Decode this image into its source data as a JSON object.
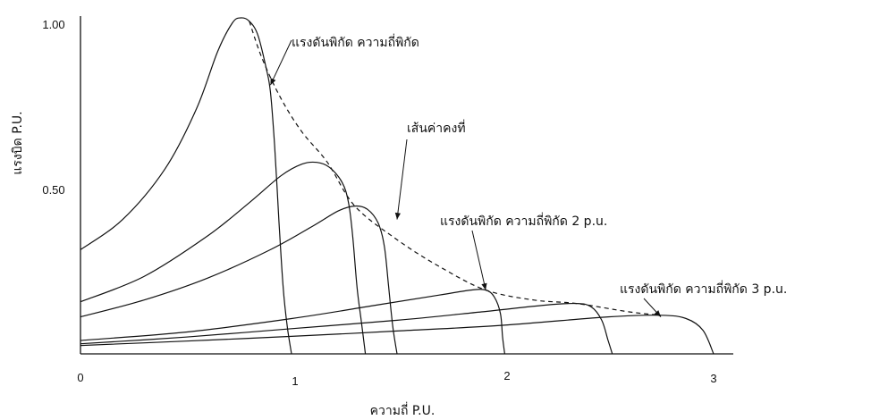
{
  "chart_data": {
    "type": "line",
    "title": "",
    "xlabel": "ความถี่ P.U.",
    "ylabel": "แรงบิด P.U.",
    "xlim": [
      0,
      3
    ],
    "ylim": [
      0,
      1.0
    ],
    "x_ticks": [
      "0",
      "1",
      "2",
      "3"
    ],
    "y_ticks": [
      "0.50",
      "1.00"
    ],
    "series": [
      {
        "points": [
          [
            0,
            0.31
          ],
          [
            0.2,
            0.4
          ],
          [
            0.4,
            0.55
          ],
          [
            0.55,
            0.73
          ],
          [
            0.65,
            0.9
          ],
          [
            0.72,
            0.985
          ],
          [
            0.76,
            1.0
          ],
          [
            0.8,
            0.99
          ],
          [
            0.84,
            0.95
          ],
          [
            0.88,
            0.85
          ],
          [
            0.9,
            0.78
          ],
          [
            0.92,
            0.62
          ],
          [
            0.94,
            0.4
          ],
          [
            0.96,
            0.2
          ],
          [
            0.98,
            0.08
          ],
          [
            1.0,
            0.0
          ]
        ]
      },
      {
        "points": [
          [
            0,
            0.155
          ],
          [
            0.3,
            0.23
          ],
          [
            0.6,
            0.35
          ],
          [
            0.8,
            0.45
          ],
          [
            0.95,
            0.53
          ],
          [
            1.05,
            0.565
          ],
          [
            1.12,
            0.57
          ],
          [
            1.18,
            0.555
          ],
          [
            1.24,
            0.51
          ],
          [
            1.27,
            0.45
          ],
          [
            1.29,
            0.35
          ],
          [
            1.31,
            0.2
          ],
          [
            1.33,
            0.1
          ],
          [
            1.35,
            0.0
          ]
        ]
      },
      {
        "points": [
          [
            0,
            0.11
          ],
          [
            0.3,
            0.16
          ],
          [
            0.6,
            0.225
          ],
          [
            0.9,
            0.31
          ],
          [
            1.1,
            0.38
          ],
          [
            1.22,
            0.425
          ],
          [
            1.3,
            0.44
          ],
          [
            1.36,
            0.43
          ],
          [
            1.41,
            0.39
          ],
          [
            1.44,
            0.32
          ],
          [
            1.46,
            0.2
          ],
          [
            1.48,
            0.08
          ],
          [
            1.5,
            0.0
          ]
        ]
      },
      {
        "points": [
          [
            0,
            0.04
          ],
          [
            0.5,
            0.065
          ],
          [
            1.0,
            0.105
          ],
          [
            1.4,
            0.145
          ],
          [
            1.7,
            0.175
          ],
          [
            1.85,
            0.19
          ],
          [
            1.92,
            0.19
          ],
          [
            1.96,
            0.17
          ],
          [
            1.99,
            0.12
          ],
          [
            2.0,
            0.05
          ],
          [
            2.01,
            0.0
          ]
        ]
      },
      {
        "points": [
          [
            0,
            0.03
          ],
          [
            0.5,
            0.05
          ],
          [
            1.0,
            0.075
          ],
          [
            1.5,
            0.1
          ],
          [
            1.9,
            0.125
          ],
          [
            2.2,
            0.145
          ],
          [
            2.35,
            0.15
          ],
          [
            2.42,
            0.14
          ],
          [
            2.47,
            0.1
          ],
          [
            2.5,
            0.04
          ],
          [
            2.52,
            0.0
          ]
        ]
      },
      {
        "points": [
          [
            0,
            0.025
          ],
          [
            0.5,
            0.038
          ],
          [
            1.0,
            0.052
          ],
          [
            1.5,
            0.068
          ],
          [
            2.0,
            0.085
          ],
          [
            2.5,
            0.11
          ],
          [
            2.75,
            0.115
          ],
          [
            2.87,
            0.105
          ],
          [
            2.95,
            0.07
          ],
          [
            3.0,
            0.0
          ]
        ]
      },
      {
        "points": [
          [
            0.8,
            0.99
          ],
          [
            0.86,
            0.88
          ],
          [
            0.95,
            0.76
          ],
          [
            1.05,
            0.66
          ],
          [
            1.17,
            0.57
          ],
          [
            1.3,
            0.44
          ],
          [
            1.5,
            0.34
          ],
          [
            1.7,
            0.26
          ],
          [
            1.92,
            0.19
          ],
          [
            2.15,
            0.16
          ],
          [
            2.35,
            0.15
          ],
          [
            2.6,
            0.125
          ],
          [
            2.75,
            0.115
          ]
        ],
        "dashed": true
      }
    ],
    "annotations": [
      {
        "text": "แรงดันพิกัด ความถี่พิกัด",
        "arrow_to": [
          0.9,
          0.8
        ]
      },
      {
        "text": "เส้นค่าคงที่",
        "arrow_to": [
          1.5,
          0.4
        ]
      },
      {
        "text": "แรงดันพิกัด ความถี่พิกัด 2 p.u.",
        "arrow_to": [
          1.92,
          0.19
        ]
      },
      {
        "text": "แรงดันพิกัด ความถี่พิกัด 3 p.u.",
        "arrow_to": [
          2.75,
          0.11
        ]
      }
    ],
    "grid": false,
    "legend": "none"
  }
}
